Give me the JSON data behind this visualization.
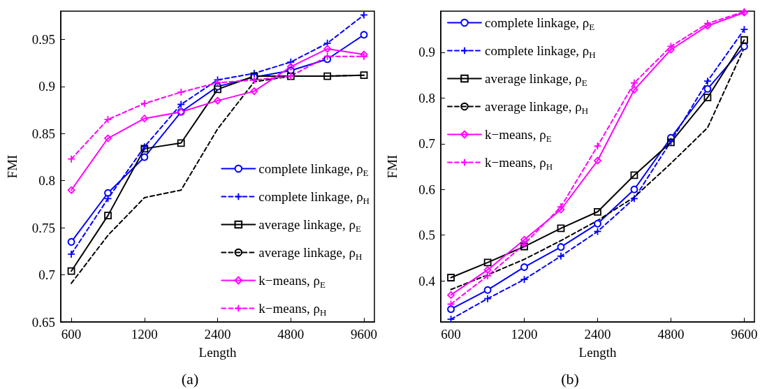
{
  "chart_data": [
    {
      "type": "line",
      "xlabel": "Length",
      "ylabel": "FMI",
      "annotations": [
        "(a)"
      ],
      "x": [
        600,
        849,
        1200,
        1697,
        2400,
        3394,
        4800,
        6788,
        9600
      ],
      "xlim": [
        543,
        10600
      ],
      "xticks": [
        600,
        1200,
        2400,
        4800,
        9600
      ],
      "log": "x",
      "ylim": [
        0.65,
        0.98
      ],
      "yticks": [
        0.65,
        0.7,
        0.75,
        0.8,
        0.85,
        0.9,
        0.95
      ],
      "grid": false,
      "legend": "bottom right",
      "series": [
        {
          "name": "complete linkage, ρ$_{E}$",
          "color": "#0000ff",
          "marker": "circle",
          "line_style": "solid",
          "values": [
            0.735,
            0.787,
            0.825,
            0.873,
            0.9,
            0.91,
            0.917,
            0.929,
            0.955
          ]
        },
        {
          "name": "complete linkage, ρ$_{H}$",
          "color": "#0000ff",
          "marker": "cross",
          "line_style": "dashed",
          "values": [
            0.722,
            0.781,
            0.836,
            0.881,
            0.907,
            0.914,
            0.926,
            0.946,
            0.976
          ]
        },
        {
          "name": "average linkage, ρ$_{E}$",
          "color": "#000000",
          "marker": "square",
          "line_style": "solid",
          "values": [
            0.704,
            0.763,
            0.834,
            0.84,
            0.897,
            0.911,
            0.911,
            0.911,
            0.912
          ]
        },
        {
          "name": "average linkage, ρ$_{H}$",
          "color": "#000000",
          "marker": "none",
          "line_style": "dashed",
          "values": [
            0.691,
            0.742,
            0.782,
            0.79,
            0.855,
            0.905,
            0.911,
            0.911,
            0.912
          ]
        },
        {
          "name": "k−means, ρ$_{E}$",
          "color": "#ff00ff",
          "marker": "diamond",
          "line_style": "solid",
          "values": [
            0.79,
            0.845,
            0.866,
            0.873,
            0.885,
            0.895,
            0.921,
            0.94,
            0.934
          ]
        },
        {
          "name": "k−means, ρ$_{H}$",
          "color": "#ff00ff",
          "marker": "cross",
          "line_style": "dashed",
          "values": [
            0.823,
            0.865,
            0.882,
            0.894,
            0.904,
            0.907,
            0.911,
            0.932,
            0.932
          ]
        }
      ]
    },
    {
      "type": "line",
      "xlabel": "Length",
      "ylabel": "FMI",
      "annotations": [
        "(b)"
      ],
      "x": [
        600,
        849,
        1200,
        1697,
        2400,
        3394,
        4800,
        6788,
        9600
      ],
      "xlim": [
        545,
        10570
      ],
      "xticks": [
        600,
        1200,
        2400,
        4800,
        9600
      ],
      "log": "x",
      "ylim": [
        0.31,
        0.99
      ],
      "yticks": [
        0.4,
        0.5,
        0.6,
        0.7,
        0.8,
        0.9
      ],
      "grid": false,
      "legend": "top left",
      "series": [
        {
          "name": "complete linkage, ρ$_{E}$",
          "color": "#0000ff",
          "marker": "circle",
          "line_style": "solid",
          "values": [
            0.338,
            0.38,
            0.43,
            0.474,
            0.525,
            0.6,
            0.713,
            0.82,
            0.913
          ]
        },
        {
          "name": "complete linkage, ρ$_{H}$",
          "color": "#0000ff",
          "marker": "cross",
          "line_style": "dashed",
          "values": [
            0.316,
            0.361,
            0.403,
            0.454,
            0.508,
            0.58,
            0.705,
            0.837,
            0.95
          ]
        },
        {
          "name": "average linkage, ρ$_{E}$",
          "color": "#000000",
          "marker": "square",
          "line_style": "solid",
          "values": [
            0.407,
            0.44,
            0.475,
            0.515,
            0.551,
            0.631,
            0.703,
            0.801,
            0.927
          ]
        },
        {
          "name": "average linkage, ρ$_{H}$",
          "color": "#000000",
          "marker": "none",
          "line_style": "dashed",
          "values": [
            0.381,
            0.413,
            0.447,
            0.488,
            0.532,
            0.583,
            0.657,
            0.735,
            0.91
          ]
        },
        {
          "name": "k−means, ρ$_{E}$",
          "color": "#ff00ff",
          "marker": "diamond",
          "line_style": "solid",
          "values": [
            0.369,
            0.424,
            0.49,
            0.556,
            0.663,
            0.818,
            0.906,
            0.958,
            0.987
          ]
        },
        {
          "name": "k−means, ρ$_{H}$",
          "color": "#ff00ff",
          "marker": "cross",
          "line_style": "dashed",
          "values": [
            0.349,
            0.411,
            0.48,
            0.562,
            0.695,
            0.833,
            0.913,
            0.963,
            0.989
          ]
        }
      ]
    }
  ]
}
